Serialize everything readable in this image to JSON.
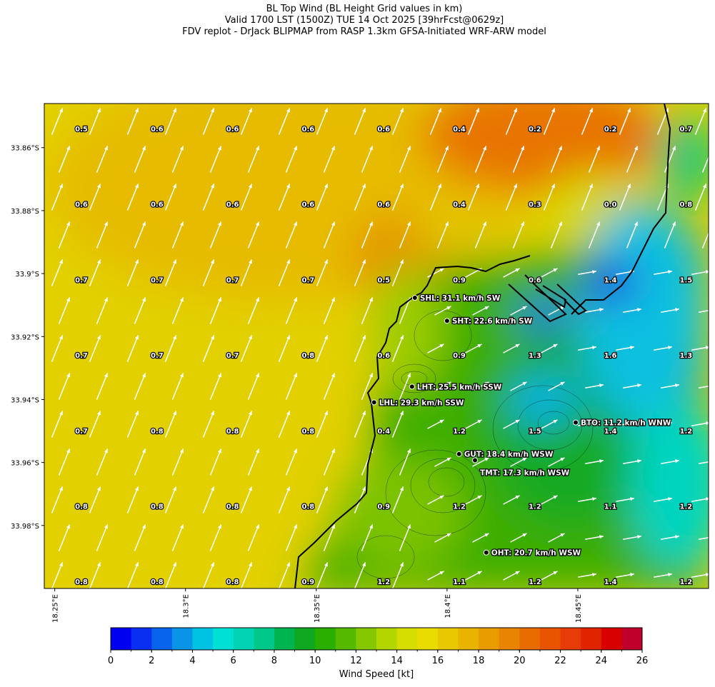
{
  "header": {
    "title": "BL Top Wind (BL Height Grid values in km)",
    "valid": "Valid 1700 LST (1500Z) TUE 14 Oct 2025 [39hrFcst@0629z]",
    "source": "FDV replot - DrJack BLIPMAP from RASP 1.3km GFSA-Initiated WRF-ARW model"
  },
  "map": {
    "xlim": [
      18.246,
      18.5
    ],
    "ylim": [
      -34.0,
      -33.846
    ],
    "yticks": [
      {
        "value": -33.86,
        "label": "33.86°S"
      },
      {
        "value": -33.88,
        "label": "33.88°S"
      },
      {
        "value": -33.9,
        "label": "33.9°S"
      },
      {
        "value": -33.92,
        "label": "33.92°S"
      },
      {
        "value": -33.94,
        "label": "33.94°S"
      },
      {
        "value": -33.96,
        "label": "33.96°S"
      },
      {
        "value": -33.98,
        "label": "33.98°S"
      }
    ],
    "xticks": [
      {
        "value": 18.25,
        "label": "18.25°E"
      },
      {
        "value": 18.3,
        "label": "18.3°E"
      },
      {
        "value": 18.35,
        "label": "18.35°E"
      },
      {
        "value": 18.4,
        "label": "18.4°E"
      },
      {
        "value": 18.45,
        "label": "18.45°E"
      }
    ],
    "grid_values": [
      [
        "0.5",
        "0.6",
        "0.6",
        "0.6",
        "0.6",
        "0.4",
        "0.2",
        "0.2",
        "0.7"
      ],
      [
        "0.6",
        "0.6",
        "0.6",
        "0.6",
        "0.6",
        "0.4",
        "0.3",
        "0.0",
        "0.8"
      ],
      [
        "0.7",
        "0.7",
        "0.7",
        "0.7",
        "0.5",
        "0.9",
        "0.6",
        "1.4",
        "1.5"
      ],
      [
        "0.7",
        "0.7",
        "0.7",
        "0.8",
        "0.6",
        "0.9",
        "1.3",
        "1.6",
        "1.3"
      ],
      [
        "0.7",
        "0.8",
        "0.8",
        "0.8",
        "0.4",
        "1.2",
        "1.5",
        "1.4",
        "1.2"
      ],
      [
        "0.8",
        "0.8",
        "0.8",
        "0.8",
        "0.9",
        "1.2",
        "1.2",
        "1.1",
        "1.2"
      ],
      [
        "0.8",
        "0.8",
        "0.8",
        "0.9",
        "1.2",
        "1.1",
        "1.2",
        "1.4",
        "1.2"
      ]
    ],
    "stations": [
      {
        "label": "SHL: 31.1 km/h SW",
        "lon": 18.3877,
        "lat": -33.9077
      },
      {
        "label": "SHT: 22.6 km/h SW",
        "lon": 18.4,
        "lat": -33.915
      },
      {
        "label": "LHT: 25.5 km/h SSW",
        "lon": 18.3866,
        "lat": -33.9359
      },
      {
        "label": "LHL: 29.3 km/h SSW",
        "lon": 18.3721,
        "lat": -33.9409
      },
      {
        "label": "BTO: 11.2 km/h WNW",
        "lon": 18.4492,
        "lat": -33.9473
      },
      {
        "label": "GUT: 18.4 km/h WSW",
        "lon": 18.4046,
        "lat": -33.9573
      },
      {
        "label": "TMT: 17.3 km/h WSW",
        "lon": 18.4107,
        "lat": -33.9593
      },
      {
        "label": "OHT: 20.7 km/h WSW",
        "lon": 18.415,
        "lat": -33.9886
      }
    ]
  },
  "colorbar": {
    "label": "Wind Speed [kt]",
    "lim": [
      0,
      26
    ],
    "ticks": [
      0,
      2,
      4,
      6,
      8,
      10,
      12,
      14,
      16,
      18,
      20,
      22,
      24,
      26
    ],
    "colors": [
      "#0000f0",
      "#0a2ff0",
      "#0563ec",
      "#0a94e8",
      "#00c3e4",
      "#00e0d4",
      "#00d4b4",
      "#00c888",
      "#00b450",
      "#10a820",
      "#2aae00",
      "#55b900",
      "#86c800",
      "#b3d600",
      "#d6dd00",
      "#e8dc00",
      "#e8c800",
      "#e8b400",
      "#e89c00",
      "#e88400",
      "#e86c00",
      "#e85400",
      "#e83c08",
      "#e02400",
      "#d80000",
      "#c0002a"
    ]
  }
}
